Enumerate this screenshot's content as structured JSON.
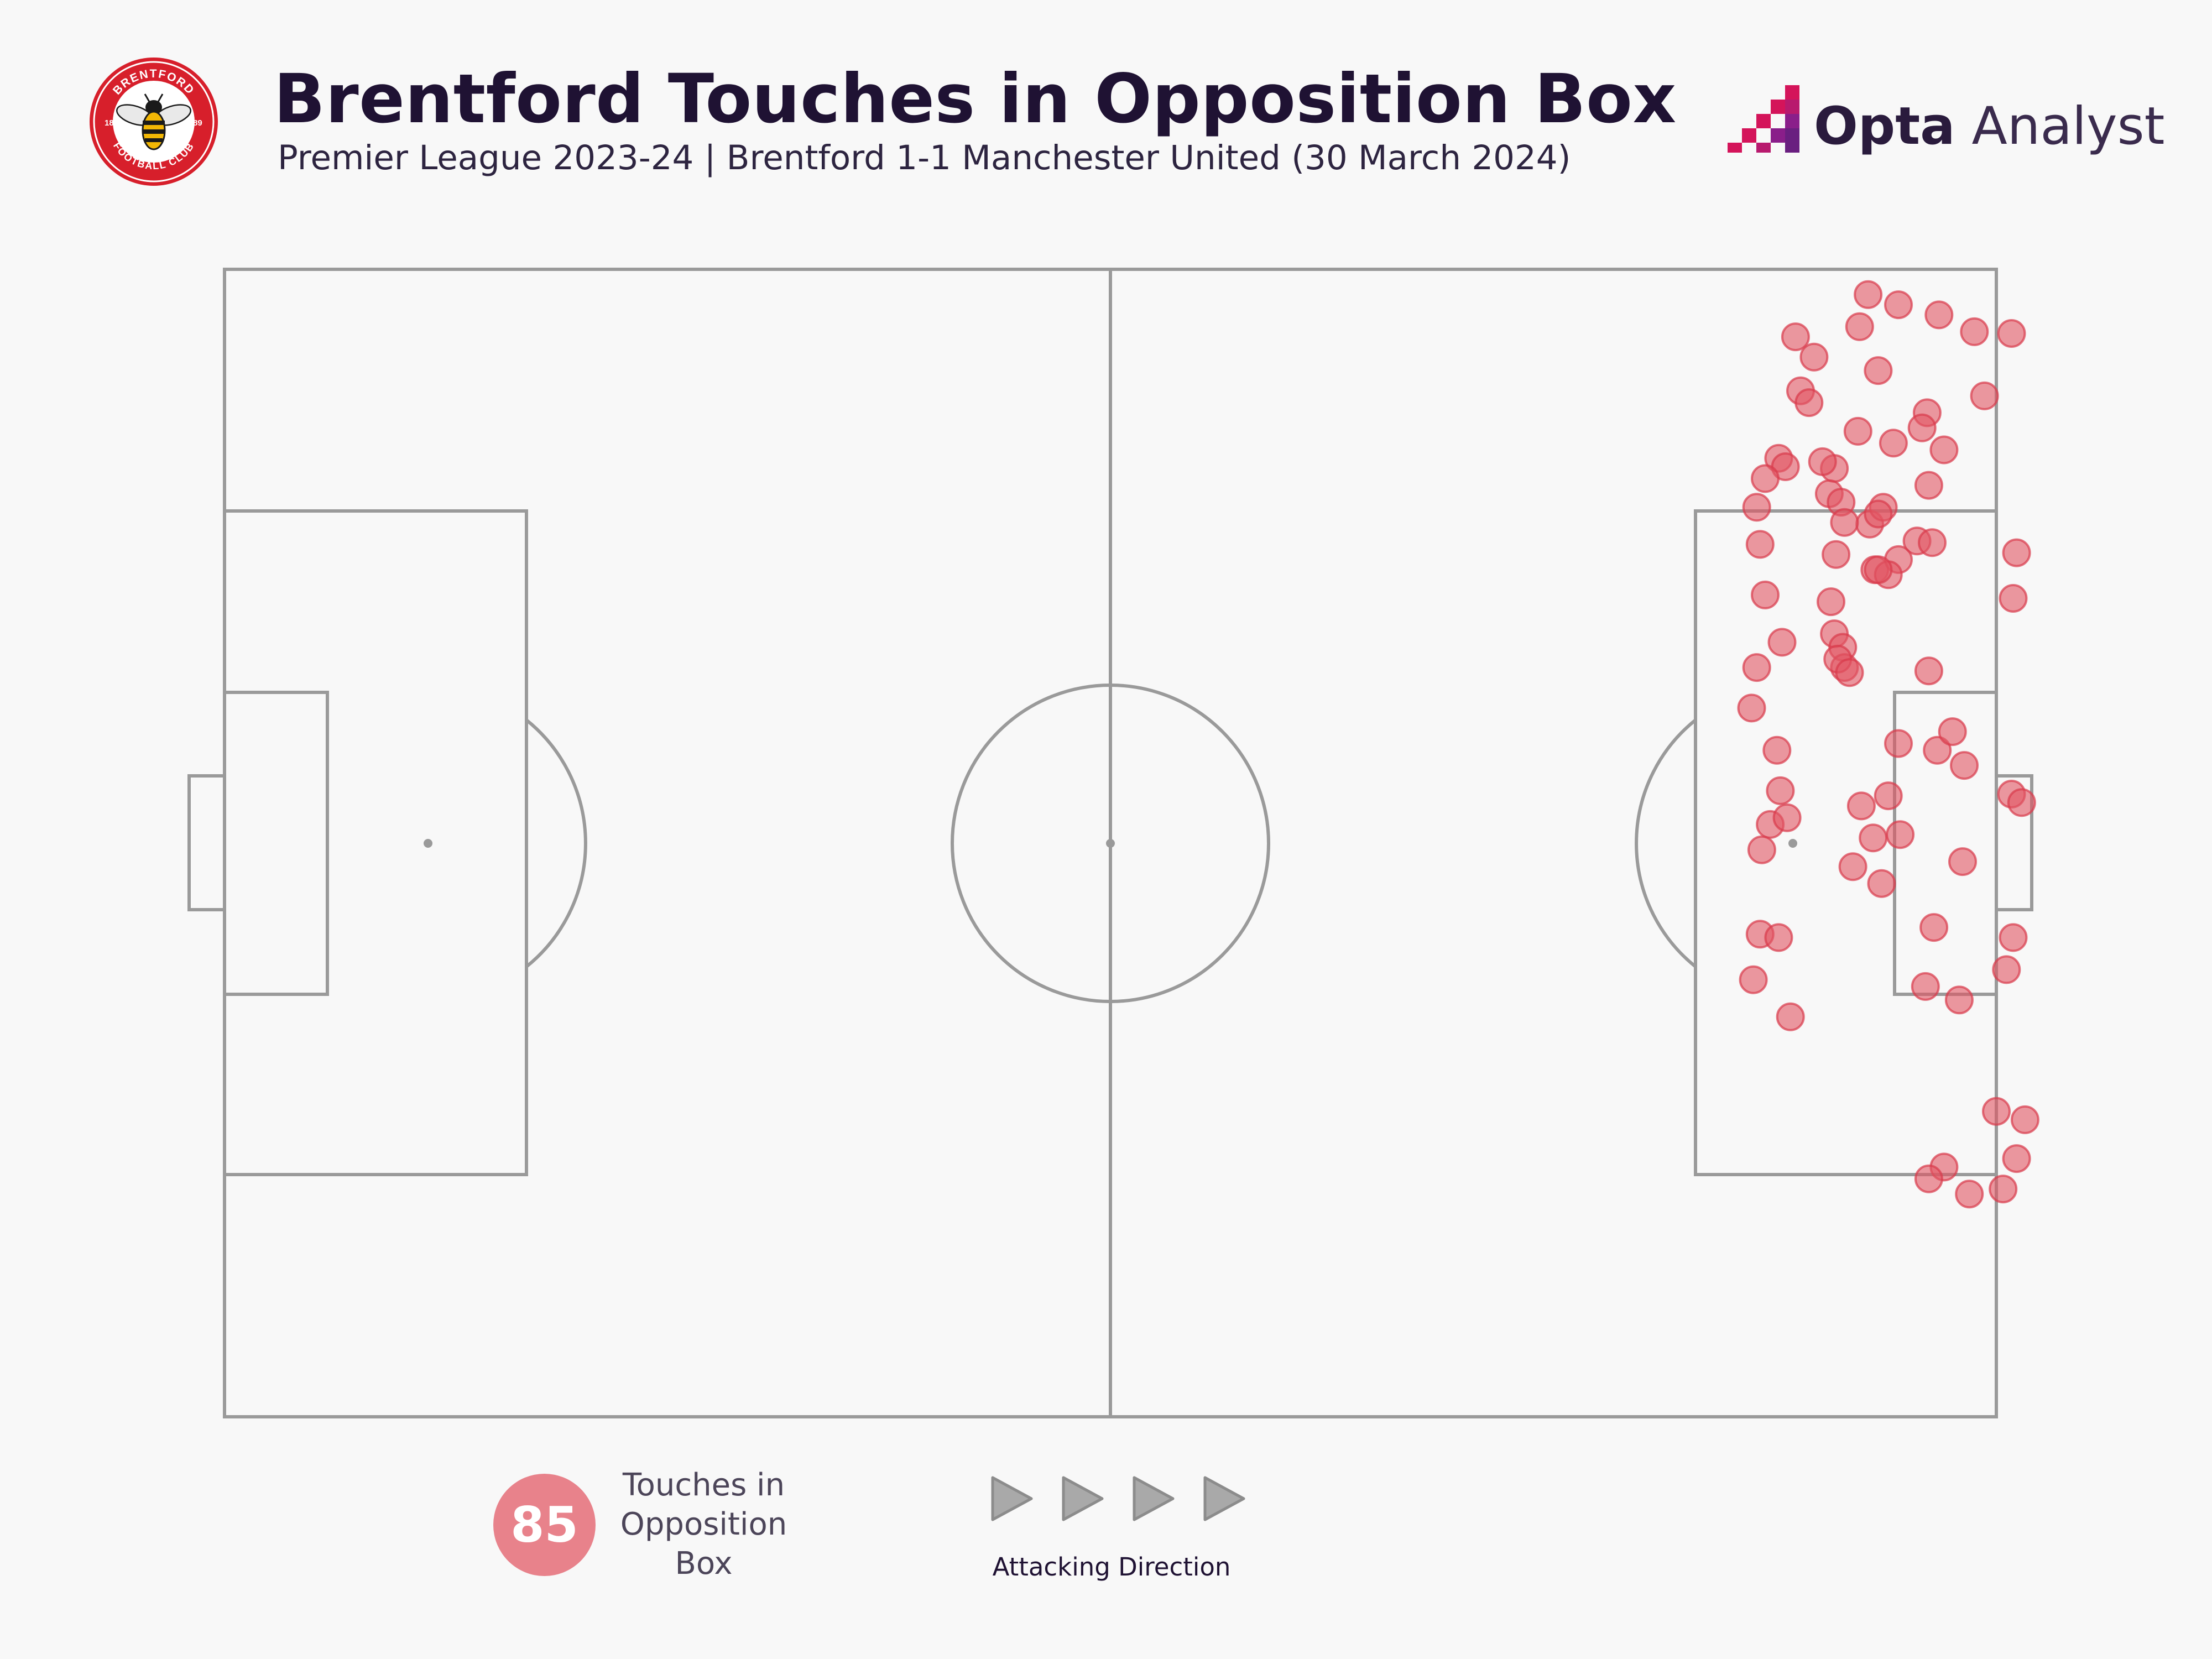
{
  "header": {
    "title": "Brentford Touches in Opposition Box",
    "subtitle": "Premier League 2023-24 | Brentford 1-1 Manchester United (30 March 2024)"
  },
  "crest": {
    "top_text": "BRENTFORD",
    "bottom_text": "FOOTBALL CLUB",
    "left_year": "18",
    "right_year": "89",
    "colors": {
      "ring": "#d71f2b",
      "inner": "#ffffff",
      "bee": "#f2b705"
    }
  },
  "brand": {
    "bold": "Opta",
    "light": " Analyst",
    "accent": "#d4145a",
    "accent2": "#8a1e8a"
  },
  "legend": {
    "count": "85",
    "label_lines": [
      "Touches in",
      "Opposition",
      "Box"
    ],
    "direction_label": "Attacking Direction",
    "arrow_icon": "play-triangle-icon"
  },
  "colors": {
    "background": "#f8f8f8",
    "lines": "#9a9a9a",
    "touch_fill": "#e15563",
    "touch_stroke": "#d93a4b"
  },
  "chart_data": {
    "type": "scatter",
    "title": "Brentford Touches in Opposition Box",
    "xlim": [
      0,
      105
    ],
    "ylim": [
      0,
      68
    ],
    "attacking_direction": "left-to-right",
    "x": [
      97.4,
      99.2,
      93.1,
      98.0,
      101.6,
      103.7,
      105.9,
      94.2,
      96.9,
      93.4,
      100.9,
      101.9,
      92.1,
      92.5,
      95.4,
      96.8,
      100.6,
      98.9,
      91.3,
      95.1,
      101.0,
      95.8,
      97.5,
      98.3,
      98.0,
      90.8,
      96.0,
      100.3,
      101.2,
      106.2,
      91.0,
      95.5,
      97.8,
      99.2,
      98.6,
      98.0,
      106.0,
      91.3,
      95.2,
      95.4,
      95.9,
      96.0,
      95.6,
      96.3,
      101.0,
      103.1,
      105.9,
      90.5,
      90.8,
      99.2,
      101.5,
      102.4,
      92.2,
      91.6,
      106.5,
      97.0,
      98.6,
      99.3,
      91.1,
      91.0,
      98.2,
      96.5,
      92.1,
      103.0,
      101.3,
      92.8,
      100.8,
      102.8,
      90.6,
      92.6,
      97.7,
      105.6,
      106.0,
      92.0,
      106.7,
      105.0,
      101.9,
      101.0,
      105.4,
      106.2,
      103.4,
      92.3,
      104.3,
      93.9,
      94.7
    ],
    "y": [
      66.5,
      65.9,
      64.0,
      62.0,
      65.3,
      64.3,
      64.2,
      62.8,
      64.6,
      60.8,
      59.5,
      57.3,
      56.8,
      56.3,
      56.2,
      58.4,
      58.6,
      57.7,
      55.6,
      54.7,
      55.2,
      54.2,
      52.9,
      53.9,
      53.5,
      53.9,
      53.0,
      51.9,
      51.8,
      51.2,
      51.7,
      51.1,
      50.2,
      50.8,
      49.9,
      50.2,
      48.5,
      48.7,
      48.3,
      46.4,
      45.6,
      44.4,
      44.9,
      44.1,
      44.2,
      38.6,
      36.9,
      42.0,
      44.4,
      39.9,
      39.5,
      40.6,
      37.1,
      35.1,
      36.4,
      36.2,
      36.8,
      34.5,
      33.6,
      28.6,
      31.6,
      32.6,
      28.4,
      32.9,
      29.0,
      23.7,
      25.5,
      24.7,
      25.9,
      35.5,
      34.3,
      26.5,
      28.4,
      39.5,
      17.6,
      18.1,
      14.8,
      14.1,
      13.5,
      15.3,
      13.2,
      45.9,
      60.5,
      60.1,
      56.6
    ],
    "count": 85
  }
}
